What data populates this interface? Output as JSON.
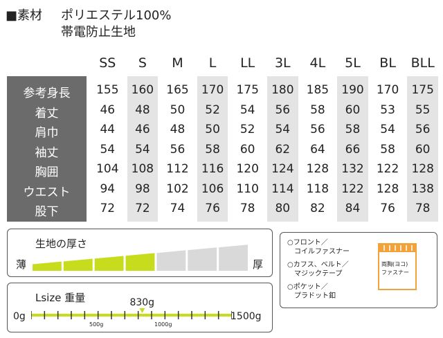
{
  "material": {
    "label": "■素材",
    "value": "ポリエステル100%",
    "value2": "帯電防止生地"
  },
  "sizes": [
    "SS",
    "S",
    "M",
    "L",
    "LL",
    "3L",
    "4L",
    "5L",
    "BL",
    "BLL"
  ],
  "rows": [
    {
      "label": "参考身長",
      "values": [
        "155",
        "160",
        "165",
        "170",
        "175",
        "180",
        "185",
        "190",
        "170",
        "175"
      ]
    },
    {
      "label": "着丈",
      "values": [
        "46",
        "48",
        "50",
        "52",
        "54",
        "56",
        "58",
        "60",
        "53",
        "55"
      ]
    },
    {
      "label": "肩巾",
      "values": [
        "44",
        "46",
        "48",
        "50",
        "52",
        "54",
        "56",
        "58",
        "54",
        "56"
      ]
    },
    {
      "label": "袖丈",
      "values": [
        "54",
        "54",
        "56",
        "58",
        "60",
        "62",
        "64",
        "66",
        "58",
        "60"
      ]
    },
    {
      "label": "胸囲",
      "values": [
        "104",
        "108",
        "112",
        "116",
        "120",
        "124",
        "128",
        "132",
        "122",
        "128"
      ]
    },
    {
      "label": "ウエスト",
      "values": [
        "94",
        "98",
        "102",
        "106",
        "110",
        "114",
        "118",
        "122",
        "128",
        "138"
      ]
    },
    {
      "label": "股下",
      "values": [
        "72",
        "72",
        "74",
        "76",
        "78",
        "80",
        "82",
        "84",
        "76",
        "78"
      ]
    }
  ],
  "thickness": {
    "title": "生地の厚さ",
    "thin": "薄",
    "thick": "厚",
    "level": 4,
    "segments": 7,
    "active_color": "#c8dc1e",
    "inactive_color": "#d9d9d9"
  },
  "weight": {
    "title": "Lsize 重量",
    "value": 830,
    "unit": "g",
    "value_text": "830g",
    "min_text": "0g",
    "max_text": "1500g",
    "mid1": "500g",
    "mid2": "1000g",
    "max": 1500,
    "color": "#c8dc1e"
  },
  "features": {
    "items": [
      "○フロント／\n　コイルファスナー",
      "○カフス、ベルト／\n　マジックテープ",
      "○ポケット／\n　プラドット釦"
    ],
    "icon_label": "両胸(ヨコ)\nファスナー",
    "icon_color": "#f2a23a"
  }
}
